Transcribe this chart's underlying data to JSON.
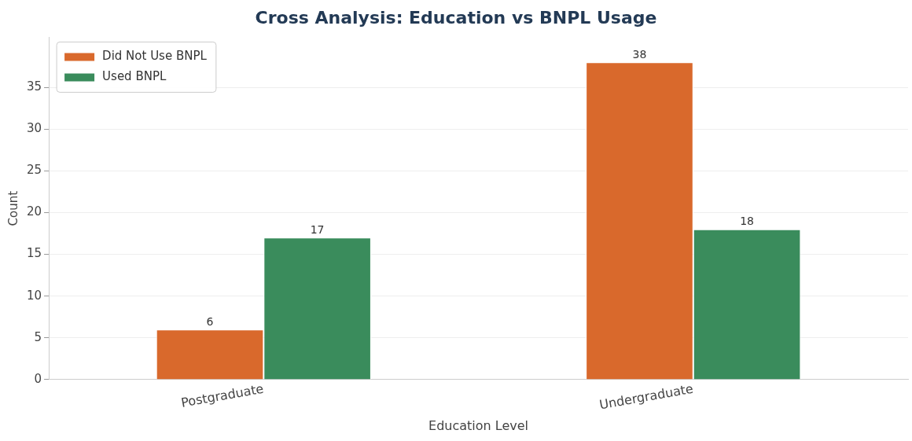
{
  "chart_data": {
    "type": "bar",
    "title": "Cross Analysis: Education vs BNPL Usage",
    "xlabel": "Education Level",
    "ylabel": "Count",
    "categories": [
      "Postgraduate",
      "Undergraduate"
    ],
    "series": [
      {
        "name": "Did Not Use BNPL",
        "color": "#d9692c",
        "values": [
          6,
          38
        ]
      },
      {
        "name": "Used BNPL",
        "color": "#3a8c5c",
        "values": [
          17,
          18
        ]
      }
    ],
    "ylim": [
      0,
      41
    ],
    "yticks": [
      0,
      5,
      10,
      15,
      20,
      25,
      30,
      35
    ],
    "grid": "y",
    "legend": "top left",
    "data_labels": true
  }
}
